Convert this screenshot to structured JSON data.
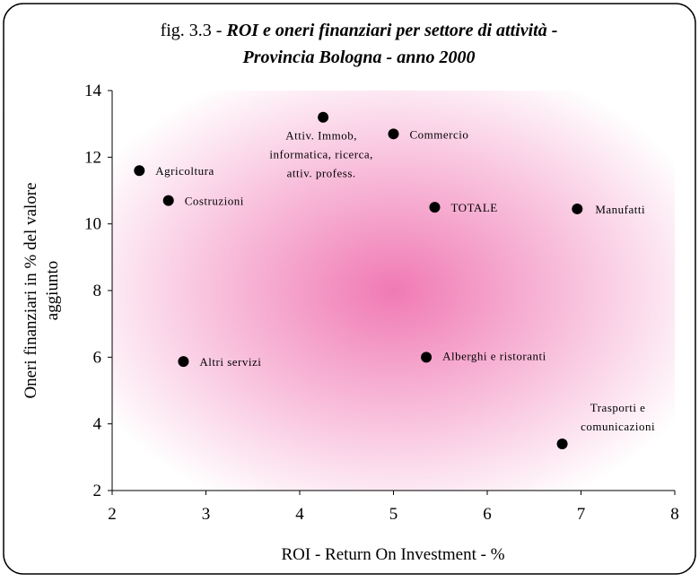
{
  "chart_data": {
    "type": "scatter",
    "title": {
      "prefix": "fig. 3.3 - ",
      "lines": [
        "ROI e oneri finanziari per settore di attività -",
        "Provincia Bologna - anno 2000"
      ]
    },
    "x_label": "ROI - Return On Investment - %",
    "y_label": [
      "Oneri finanziari in % del valore",
      "aggiunto"
    ],
    "labels": [
      [
        "Agricoltura"
      ],
      [
        "Costruzioni"
      ],
      [
        "Attiv. Immob,",
        "informatica, ricerca,",
        "attiv. profess."
      ],
      [
        "Commercio"
      ],
      [
        "TOTALE"
      ],
      [
        "Manufatti"
      ],
      [
        "Altri servizi"
      ],
      [
        "Alberghi e ristoranti"
      ],
      [
        "Trasporti e",
        "comunicazioni"
      ]
    ],
    "x": [
      2.29,
      2.6,
      4.25,
      5.0,
      5.44,
      6.96,
      2.76,
      5.35,
      6.8
    ],
    "values": [
      11.6,
      10.7,
      13.2,
      12.7,
      10.5,
      10.45,
      5.87,
      6.0,
      3.4
    ],
    "color": "#000000",
    "xlim": [
      2,
      8
    ],
    "xticks": [
      2,
      3,
      4,
      5,
      6,
      7,
      8
    ],
    "ylim": [
      2,
      14
    ],
    "yticks": [
      2,
      4,
      6,
      8,
      10,
      12,
      14
    ]
  }
}
